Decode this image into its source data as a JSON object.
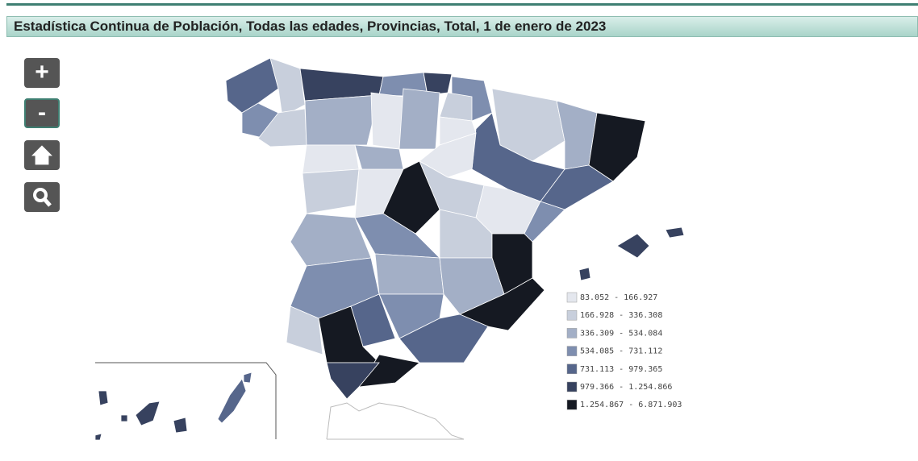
{
  "header": {
    "title": "Estadística Continua de Población, Todas las edades, Provincias, Total, 1 de enero de 2023"
  },
  "controls": {
    "zoom_in": "+",
    "zoom_out": "-"
  },
  "legend": [
    {
      "label": "83.052 - 166.927",
      "color": "#e4e7ee"
    },
    {
      "label": "166.928 - 336.308",
      "color": "#c8cfdc"
    },
    {
      "label": "336.309 - 534.084",
      "color": "#a3afc6"
    },
    {
      "label": "534.085 - 731.112",
      "color": "#7e8eaf"
    },
    {
      "label": "731.113 - 979.365",
      "color": "#56668b"
    },
    {
      "label": "979.366 - 1.254.866",
      "color": "#37425f"
    },
    {
      "label": "1.254.867 - 6.871.903",
      "color": "#151922"
    }
  ]
}
